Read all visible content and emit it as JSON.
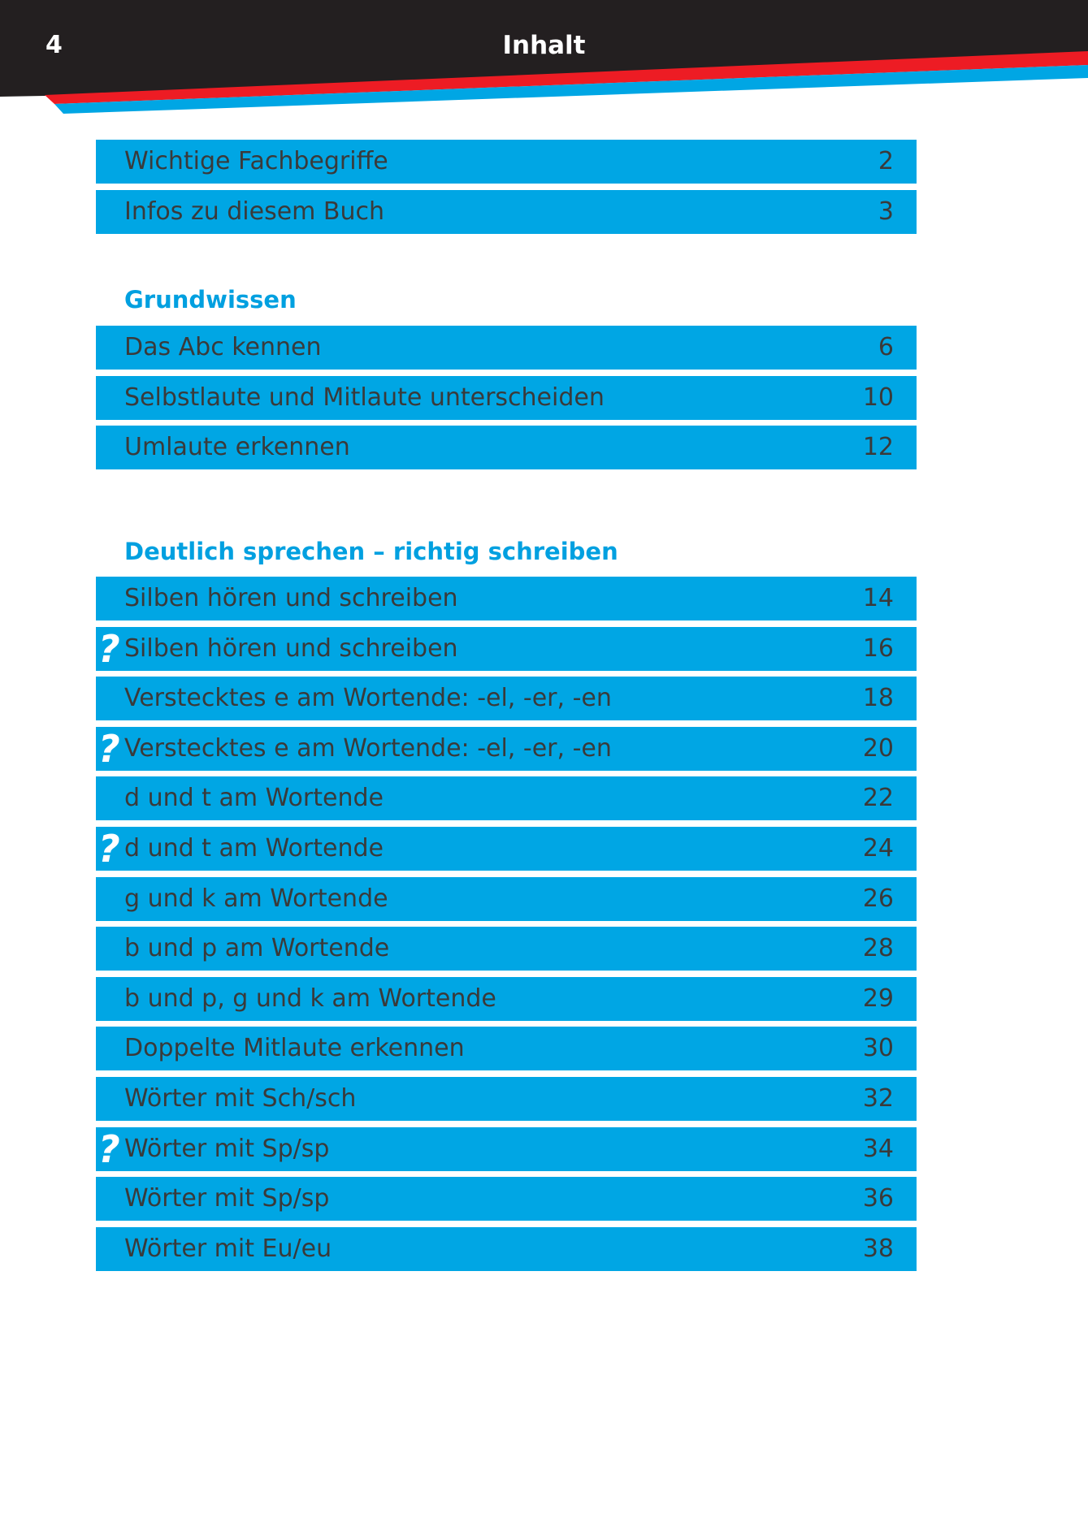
{
  "header": {
    "page_number": "4",
    "title": "Inhalt"
  },
  "colors": {
    "header_bg": "#231f20",
    "stripe_red": "#ed1c24",
    "stripe_blue": "#00a6e4",
    "row_bg": "#00a6e4",
    "heading": "#00a0e0"
  },
  "intro": [
    {
      "label": "Wichtige Fachbegriffe",
      "page": "2"
    },
    {
      "label": "Infos zu diesem Buch",
      "page": "3"
    }
  ],
  "sections": [
    {
      "heading": "Grundwissen",
      "items": [
        {
          "label": "Das Abc kennen",
          "page": "6"
        },
        {
          "label": "Selbstlaute und Mitlaute unterscheiden",
          "page": "10"
        },
        {
          "label": "Umlaute erkennen",
          "page": "12"
        }
      ]
    },
    {
      "heading": "Deutlich sprechen – richtig schreiben",
      "items": [
        {
          "label": "Silben hören und schreiben",
          "page": "14",
          "quiz": false
        },
        {
          "label": "Silben hören und schreiben",
          "page": "16",
          "quiz": true
        },
        {
          "label": "Verstecktes e am Wortende: -el, -er, -en",
          "page": "18",
          "quiz": false
        },
        {
          "label": "Verstecktes e am Wortende: -el, -er, -en",
          "page": "20",
          "quiz": true
        },
        {
          "label": "d und t am Wortende",
          "page": "22",
          "quiz": false
        },
        {
          "label": "d und t am Wortende",
          "page": "24",
          "quiz": true
        },
        {
          "label": "g und k am Wortende",
          "page": "26",
          "quiz": false
        },
        {
          "label": "b und p am Wortende",
          "page": "28",
          "quiz": false
        },
        {
          "label": "b und p, g und k am Wortende",
          "page": "29",
          "quiz": false
        },
        {
          "label": "Doppelte Mitlaute erkennen",
          "page": "30",
          "quiz": false
        },
        {
          "label": "Wörter mit Sch/sch",
          "page": "32",
          "quiz": false
        },
        {
          "label": "Wörter mit Sp/sp",
          "page": "34",
          "quiz": true
        },
        {
          "label": "Wörter mit Sp/sp",
          "page": "36",
          "quiz": false
        },
        {
          "label": "Wörter mit Eu/eu",
          "page": "38",
          "quiz": false
        }
      ]
    }
  ],
  "quiz_icon": {
    "glyph": "?",
    "name": "question-mark-icon"
  }
}
